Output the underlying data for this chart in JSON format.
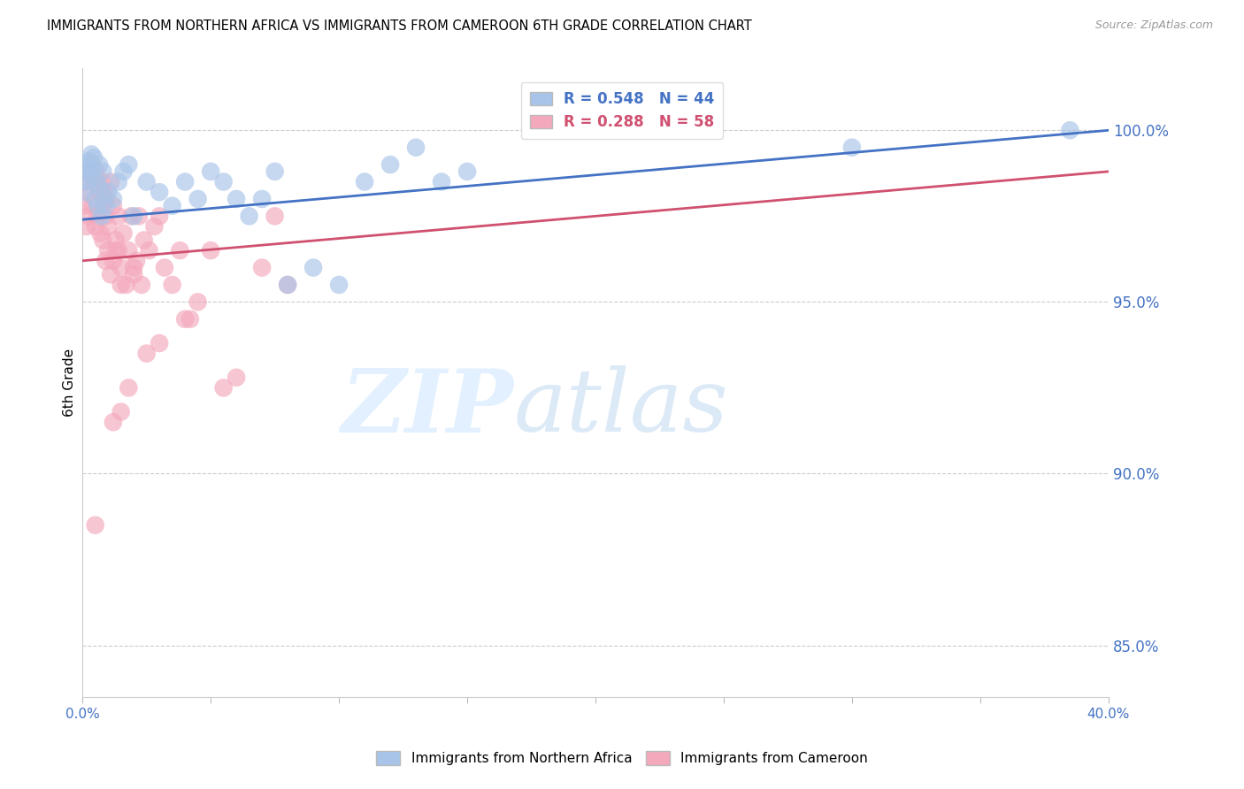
{
  "title": "IMMIGRANTS FROM NORTHERN AFRICA VS IMMIGRANTS FROM CAMEROON 6TH GRADE CORRELATION CHART",
  "source": "Source: ZipAtlas.com",
  "ylabel": "6th Grade",
  "yaxis_ticks": [
    85.0,
    90.0,
    95.0,
    100.0
  ],
  "yaxis_labels": [
    "85.0%",
    "90.0%",
    "95.0%",
    "100.0%"
  ],
  "xlim": [
    0.0,
    40.0
  ],
  "ylim": [
    83.5,
    101.8
  ],
  "blue_R": 0.548,
  "blue_N": 44,
  "pink_R": 0.288,
  "pink_N": 58,
  "blue_color": "#a8c4e8",
  "pink_color": "#f4a8bc",
  "blue_line_color": "#4472c4",
  "pink_line_color": "#d05070",
  "blue_label": "Immigrants from Northern Africa",
  "pink_label": "Immigrants from Cameroon",
  "blue_scatter_x": [
    0.05,
    0.1,
    0.15,
    0.2,
    0.25,
    0.3,
    0.35,
    0.4,
    0.45,
    0.5,
    0.55,
    0.6,
    0.65,
    0.7,
    0.75,
    0.8,
    0.9,
    1.0,
    1.2,
    1.4,
    1.6,
    1.8,
    2.0,
    2.5,
    3.0,
    3.5,
    4.0,
    4.5,
    5.0,
    5.5,
    6.0,
    6.5,
    7.0,
    7.5,
    8.0,
    9.0,
    10.0,
    11.0,
    12.0,
    13.0,
    14.0,
    15.0,
    30.0,
    38.5
  ],
  "blue_scatter_y": [
    98.2,
    98.8,
    99.0,
    98.5,
    99.1,
    98.7,
    99.3,
    98.9,
    99.2,
    98.0,
    98.5,
    97.8,
    99.0,
    98.3,
    97.5,
    98.8,
    97.8,
    98.2,
    98.0,
    98.5,
    98.8,
    99.0,
    97.5,
    98.5,
    98.2,
    97.8,
    98.5,
    98.0,
    98.8,
    98.5,
    98.0,
    97.5,
    98.0,
    98.8,
    95.5,
    96.0,
    95.5,
    98.5,
    99.0,
    99.5,
    98.5,
    98.8,
    99.5,
    100.0
  ],
  "pink_scatter_x": [
    0.05,
    0.1,
    0.15,
    0.2,
    0.25,
    0.3,
    0.35,
    0.4,
    0.45,
    0.5,
    0.55,
    0.6,
    0.65,
    0.7,
    0.75,
    0.8,
    0.85,
    0.9,
    0.95,
    1.0,
    1.1,
    1.2,
    1.3,
    1.4,
    1.5,
    1.6,
    1.7,
    1.8,
    1.9,
    2.0,
    2.2,
    2.4,
    2.6,
    2.8,
    3.0,
    3.5,
    4.0,
    4.5,
    5.0,
    5.5,
    6.0,
    7.0,
    7.5,
    8.0,
    2.0,
    2.1,
    2.3,
    3.2,
    3.8,
    4.2,
    0.8,
    0.9,
    1.0,
    1.1,
    1.2,
    1.3,
    1.4,
    1.5
  ],
  "pink_scatter_y": [
    97.8,
    98.5,
    97.2,
    98.8,
    97.5,
    98.2,
    99.0,
    97.8,
    98.5,
    97.2,
    98.8,
    97.5,
    98.2,
    97.0,
    98.5,
    97.8,
    98.2,
    97.5,
    98.0,
    97.2,
    98.5,
    97.8,
    96.5,
    97.5,
    96.0,
    97.0,
    95.5,
    96.5,
    97.5,
    96.0,
    97.5,
    96.8,
    96.5,
    97.2,
    97.5,
    95.5,
    94.5,
    95.0,
    96.5,
    92.5,
    92.8,
    96.0,
    97.5,
    95.5,
    95.8,
    96.2,
    95.5,
    96.0,
    96.5,
    94.5,
    96.8,
    96.2,
    96.5,
    95.8,
    96.2,
    96.8,
    96.5,
    95.5
  ],
  "pink_low_x": [
    0.5,
    1.2,
    1.5,
    1.8,
    2.5,
    3.0
  ],
  "pink_low_y": [
    88.5,
    91.5,
    91.8,
    92.5,
    93.5,
    93.8
  ],
  "xticks": [
    0,
    5,
    10,
    15,
    20,
    25,
    30,
    35,
    40
  ]
}
